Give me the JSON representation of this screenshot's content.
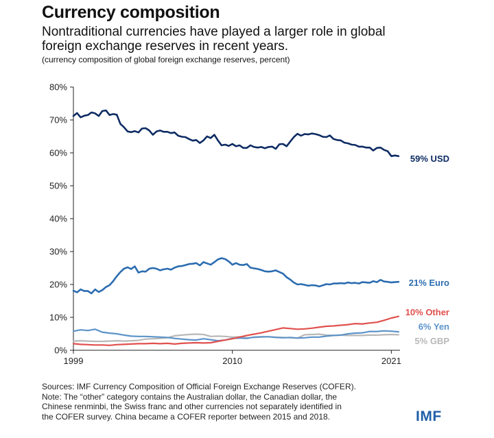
{
  "header": {
    "title": "Currency composition",
    "subtitle_line1": "Nontraditional currencies have played a larger role in global",
    "subtitle_line2": "foreign exchange reserves in recent years.",
    "note": "(currency composition of global foreign exchange reserves, percent)"
  },
  "footer": {
    "line1": "Sources: IMF Currency Composition of Official Foreign Exchange Reserves (COFER).",
    "line2": "Note: The “other” category contains the Australian dollar, the Canadian dollar, the",
    "line3": "Chinese renminbi, the Swiss franc and other currencies not separately identified in",
    "line4": "the COFER survey. China became a COFER reporter between 2015 and 2018."
  },
  "logo": "IMF",
  "chart_data": {
    "type": "line",
    "title": "Currency composition",
    "xlim": [
      1999,
      2021.6
    ],
    "ylim": [
      0,
      80
    ],
    "yticks": [
      0,
      10,
      20,
      30,
      40,
      50,
      60,
      70,
      80
    ],
    "ytick_labels": [
      "0%",
      "10%",
      "20%",
      "30%",
      "40%",
      "50%",
      "60%",
      "70%",
      "80%"
    ],
    "xticks": [
      1999,
      2010,
      2021
    ],
    "xtick_labels": [
      "1999",
      "2010",
      "2021"
    ],
    "grid": false,
    "legend": "end-labels",
    "series": [
      {
        "name": "USD",
        "label": "59% USD",
        "color": "#0d2b63",
        "x": [
          1999.0,
          1999.25,
          1999.5,
          1999.75,
          2000.0,
          2000.25,
          2000.5,
          2000.75,
          2001.0,
          2001.25,
          2001.5,
          2001.75,
          2002.0,
          2002.25,
          2002.5,
          2002.75,
          2003.0,
          2003.25,
          2003.5,
          2003.75,
          2004.0,
          2004.25,
          2004.5,
          2004.75,
          2005.0,
          2005.25,
          2005.5,
          2005.75,
          2006.0,
          2006.25,
          2006.5,
          2006.75,
          2007.0,
          2007.25,
          2007.5,
          2007.75,
          2008.0,
          2008.25,
          2008.5,
          2008.75,
          2009.0,
          2009.25,
          2009.5,
          2009.75,
          2010.0,
          2010.25,
          2010.5,
          2010.75,
          2011.0,
          2011.25,
          2011.5,
          2011.75,
          2012.0,
          2012.25,
          2012.5,
          2012.75,
          2013.0,
          2013.25,
          2013.5,
          2013.75,
          2014.0,
          2014.25,
          2014.5,
          2014.75,
          2015.0,
          2015.25,
          2015.5,
          2015.75,
          2016.0,
          2016.25,
          2016.5,
          2016.75,
          2017.0,
          2017.25,
          2017.5,
          2017.75,
          2018.0,
          2018.25,
          2018.5,
          2018.75,
          2019.0,
          2019.25,
          2019.5,
          2019.75,
          2020.0,
          2020.25,
          2020.5,
          2020.75,
          2021.0,
          2021.25,
          2021.5
        ],
        "values": [
          71.2,
          72.1,
          70.8,
          71.3,
          71.5,
          72.3,
          72.0,
          71.2,
          72.7,
          72.9,
          71.5,
          71.8,
          71.6,
          68.8,
          67.8,
          66.5,
          66.3,
          66.6,
          66.2,
          67.4,
          67.5,
          66.8,
          65.5,
          66.5,
          66.8,
          66.4,
          66.4,
          66.0,
          66.2,
          65.2,
          64.9,
          64.8,
          64.2,
          63.7,
          63.9,
          63.0,
          63.8,
          65.0,
          64.5,
          65.5,
          63.8,
          62.3,
          62.5,
          62.1,
          62.7,
          62.0,
          62.3,
          61.5,
          61.5,
          62.3,
          61.8,
          61.6,
          61.8,
          61.4,
          61.8,
          61.9,
          61.2,
          62.6,
          62.7,
          62.0,
          63.4,
          64.8,
          65.8,
          65.2,
          65.7,
          65.6,
          65.9,
          65.7,
          65.4,
          64.9,
          64.8,
          65.3,
          64.2,
          63.9,
          63.8,
          63.1,
          62.9,
          62.5,
          62.4,
          61.9,
          61.9,
          61.6,
          61.6,
          60.7,
          61.5,
          61.6,
          60.9,
          60.5,
          59.0,
          59.2,
          59.0
        ]
      },
      {
        "name": "Euro",
        "label": "21% Euro",
        "color": "#2b6cb0",
        "x": [
          1999.0,
          1999.25,
          1999.5,
          1999.75,
          2000.0,
          2000.25,
          2000.5,
          2000.75,
          2001.0,
          2001.25,
          2001.5,
          2001.75,
          2002.0,
          2002.25,
          2002.5,
          2002.75,
          2003.0,
          2003.25,
          2003.5,
          2003.75,
          2004.0,
          2004.25,
          2004.5,
          2004.75,
          2005.0,
          2005.25,
          2005.5,
          2005.75,
          2006.0,
          2006.25,
          2006.5,
          2006.75,
          2007.0,
          2007.25,
          2007.5,
          2007.75,
          2008.0,
          2008.25,
          2008.5,
          2008.75,
          2009.0,
          2009.25,
          2009.5,
          2009.75,
          2010.0,
          2010.25,
          2010.5,
          2010.75,
          2011.0,
          2011.25,
          2011.5,
          2011.75,
          2012.0,
          2012.25,
          2012.5,
          2012.75,
          2013.0,
          2013.25,
          2013.5,
          2013.75,
          2014.0,
          2014.25,
          2014.5,
          2014.75,
          2015.0,
          2015.25,
          2015.5,
          2015.75,
          2016.0,
          2016.25,
          2016.5,
          2016.75,
          2017.0,
          2017.25,
          2017.5,
          2017.75,
          2018.0,
          2018.25,
          2018.5,
          2018.75,
          2019.0,
          2019.25,
          2019.5,
          2019.75,
          2020.0,
          2020.25,
          2020.5,
          2020.75,
          2021.0,
          2021.25,
          2021.5
        ],
        "values": [
          18.1,
          17.6,
          18.5,
          18.0,
          18.0,
          17.3,
          18.5,
          17.7,
          18.3,
          19.2,
          19.8,
          21.0,
          22.5,
          23.8,
          24.8,
          25.2,
          24.7,
          25.5,
          23.6,
          24.0,
          23.9,
          24.8,
          25.0,
          24.8,
          24.3,
          24.6,
          24.8,
          24.5,
          25.1,
          25.5,
          25.6,
          25.9,
          26.2,
          26.3,
          26.5,
          25.8,
          26.8,
          26.4,
          26.0,
          26.8,
          27.6,
          28.0,
          27.7,
          27.0,
          26.0,
          26.5,
          26.0,
          25.9,
          26.2,
          25.1,
          24.9,
          24.7,
          24.4,
          24.0,
          23.9,
          24.0,
          24.3,
          23.8,
          23.3,
          22.2,
          21.5,
          20.6,
          20.0,
          20.1,
          19.9,
          19.6,
          19.8,
          19.7,
          19.4,
          19.7,
          20.1,
          20.0,
          20.3,
          20.3,
          20.4,
          20.3,
          20.6,
          20.4,
          20.5,
          20.3,
          20.7,
          20.6,
          20.5,
          21.0,
          20.7,
          21.4,
          20.9,
          20.8,
          20.6,
          20.7,
          20.8
        ]
      },
      {
        "name": "Other",
        "label": "10% Other",
        "color": "#e0504d",
        "x": [
          1999.0,
          1999.5,
          2000.0,
          2000.5,
          2001.0,
          2001.5,
          2002.0,
          2002.5,
          2003.0,
          2003.5,
          2004.0,
          2004.5,
          2005.0,
          2005.5,
          2006.0,
          2006.5,
          2007.0,
          2007.5,
          2008.0,
          2008.5,
          2009.0,
          2009.5,
          2010.0,
          2010.5,
          2011.0,
          2011.5,
          2012.0,
          2012.5,
          2013.0,
          2013.5,
          2014.0,
          2014.5,
          2015.0,
          2015.5,
          2016.0,
          2016.5,
          2017.0,
          2017.5,
          2018.0,
          2018.5,
          2019.0,
          2019.5,
          2020.0,
          2020.5,
          2021.0,
          2021.5
        ],
        "values": [
          2.0,
          1.8,
          1.7,
          1.6,
          1.6,
          1.5,
          1.7,
          1.8,
          1.9,
          2.0,
          2.0,
          2.1,
          2.0,
          2.1,
          1.9,
          2.1,
          2.2,
          2.3,
          2.2,
          2.3,
          2.7,
          3.1,
          3.5,
          4.0,
          4.5,
          4.9,
          5.3,
          5.8,
          6.3,
          6.8,
          6.6,
          6.4,
          6.5,
          6.7,
          7.0,
          7.3,
          7.4,
          7.6,
          7.8,
          8.1,
          8.0,
          8.3,
          8.5,
          9.1,
          9.8,
          10.3
        ]
      },
      {
        "name": "Yen",
        "label": "6% Yen",
        "color": "#5b93c9",
        "x": [
          1999.0,
          1999.5,
          2000.0,
          2000.5,
          2001.0,
          2001.5,
          2002.0,
          2002.5,
          2003.0,
          2003.5,
          2004.0,
          2004.5,
          2005.0,
          2005.5,
          2006.0,
          2006.5,
          2007.0,
          2007.5,
          2008.0,
          2008.5,
          2009.0,
          2009.5,
          2010.0,
          2010.5,
          2011.0,
          2011.5,
          2012.0,
          2012.5,
          2013.0,
          2013.5,
          2014.0,
          2014.5,
          2015.0,
          2015.5,
          2016.0,
          2016.5,
          2017.0,
          2017.5,
          2018.0,
          2018.5,
          2019.0,
          2019.5,
          2020.0,
          2020.5,
          2021.0,
          2021.5
        ],
        "values": [
          5.8,
          6.2,
          6.0,
          6.4,
          5.5,
          5.2,
          5.0,
          4.6,
          4.3,
          4.2,
          4.2,
          4.1,
          4.0,
          3.9,
          3.6,
          3.4,
          3.2,
          3.1,
          3.5,
          3.2,
          2.9,
          3.1,
          3.6,
          3.7,
          3.6,
          4.0,
          4.1,
          4.1,
          3.9,
          3.8,
          3.9,
          3.7,
          3.8,
          4.0,
          4.0,
          4.3,
          4.5,
          4.6,
          5.0,
          5.2,
          5.3,
          5.7,
          5.7,
          5.9,
          5.8,
          5.6
        ]
      },
      {
        "name": "GBP",
        "label": "5% GBP",
        "color": "#b8b8b8",
        "x": [
          1999.0,
          1999.5,
          2000.0,
          2000.5,
          2001.0,
          2001.5,
          2002.0,
          2002.5,
          2003.0,
          2003.5,
          2004.0,
          2004.5,
          2005.0,
          2005.5,
          2006.0,
          2006.5,
          2007.0,
          2007.5,
          2008.0,
          2008.5,
          2009.0,
          2009.5,
          2010.0,
          2010.5,
          2011.0,
          2011.5,
          2012.0,
          2012.5,
          2013.0,
          2013.5,
          2014.0,
          2014.5,
          2015.0,
          2015.5,
          2016.0,
          2016.5,
          2017.0,
          2017.5,
          2018.0,
          2018.5,
          2019.0,
          2019.5,
          2020.0,
          2020.5,
          2021.0,
          2021.5
        ],
        "values": [
          2.8,
          2.9,
          2.8,
          2.7,
          2.7,
          2.8,
          2.9,
          2.8,
          2.9,
          3.0,
          3.4,
          3.5,
          3.6,
          3.8,
          4.4,
          4.6,
          4.8,
          4.9,
          4.8,
          4.2,
          4.3,
          4.2,
          4.0,
          4.1,
          3.8,
          3.9,
          4.0,
          4.1,
          4.0,
          3.9,
          3.8,
          3.7,
          4.7,
          4.8,
          4.9,
          4.6,
          4.5,
          4.6,
          4.5,
          4.5,
          4.5,
          4.6,
          4.6,
          4.7,
          4.8,
          4.7
        ]
      }
    ]
  }
}
